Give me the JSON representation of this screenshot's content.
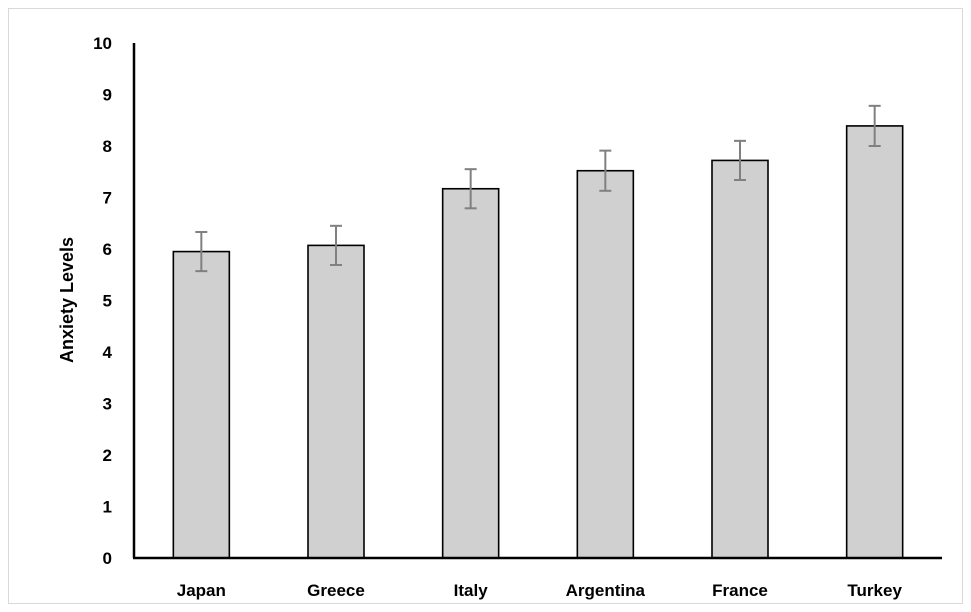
{
  "chart_data": {
    "type": "bar",
    "title": "",
    "xlabel": "",
    "ylabel": "Anxiety Levels",
    "ylim": [
      0,
      10
    ],
    "yticks": [
      0,
      1,
      2,
      3,
      4,
      5,
      6,
      7,
      8,
      9,
      10
    ],
    "categories": [
      "Japan",
      "Greece",
      "Italy",
      "Argentina",
      "France",
      "Turkey"
    ],
    "values": [
      5.95,
      6.07,
      7.17,
      7.52,
      7.72,
      8.39
    ],
    "error": [
      0.38,
      0.38,
      0.38,
      0.39,
      0.38,
      0.39
    ],
    "grid": false,
    "legend": "none",
    "colors": {
      "bar_fill": "#d0d0d0",
      "bar_edge": "#000000",
      "error_bar": "#808080",
      "axis": "#000000"
    }
  }
}
